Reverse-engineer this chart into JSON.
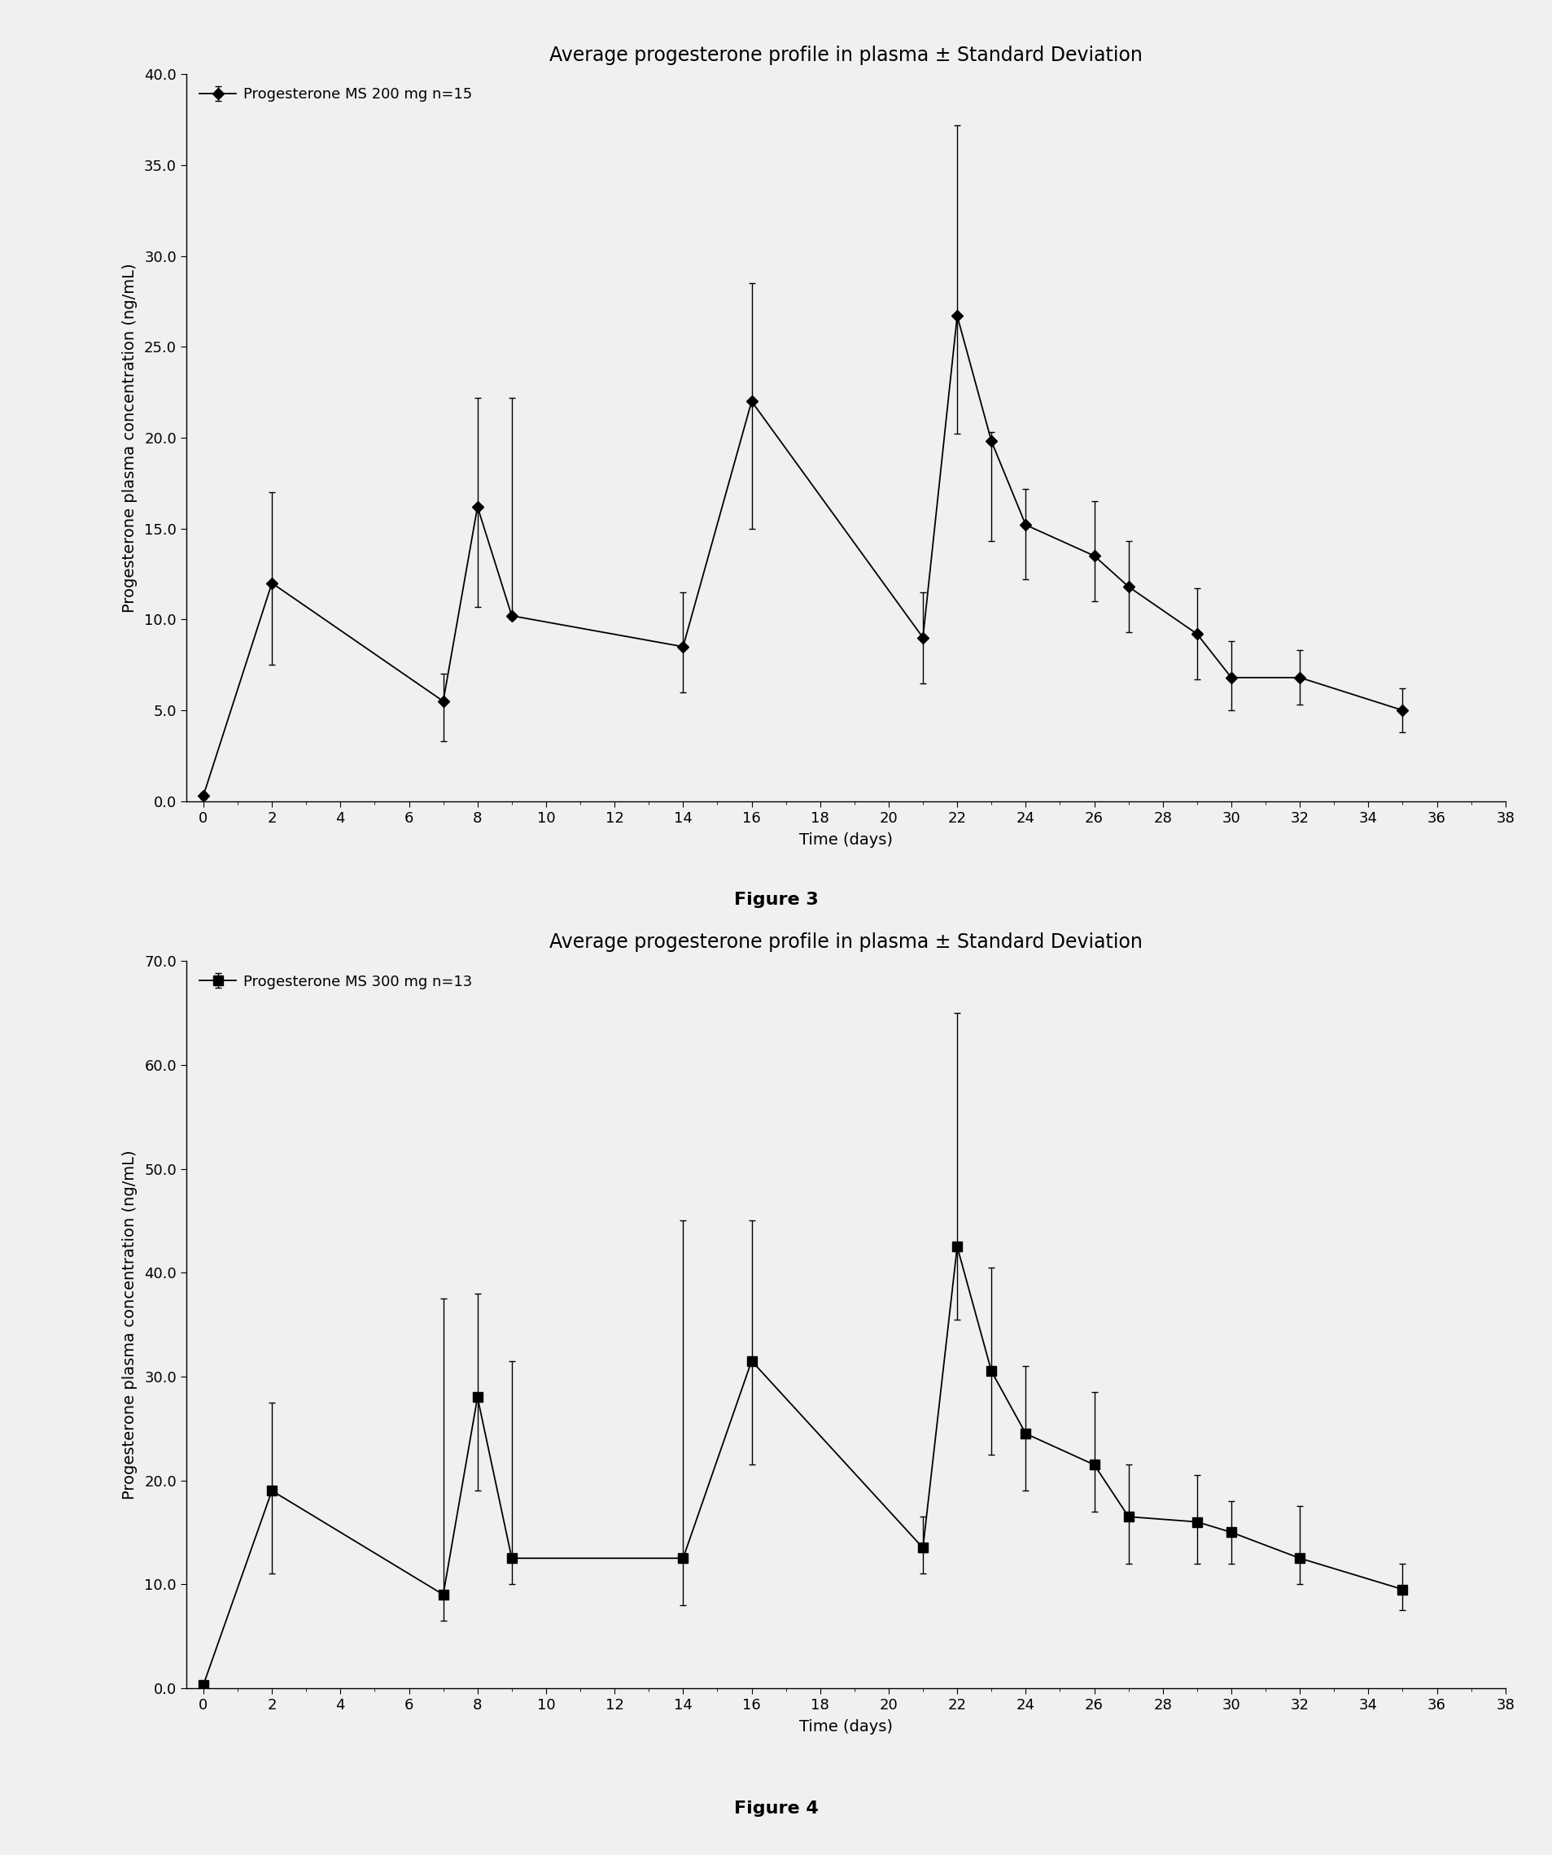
{
  "fig3": {
    "title": "Average progesterone profile in plasma ± Standard Deviation",
    "legend_label": "Progesterone MS 200 mg n=15",
    "xlabel": "Time (days)",
    "ylabel": "Progesterone plasma concentration (ng/mL)",
    "figure_label": "Figure 3",
    "ylim": [
      0.0,
      40.0
    ],
    "yticks": [
      0.0,
      5.0,
      10.0,
      15.0,
      20.0,
      25.0,
      30.0,
      35.0,
      40.0
    ],
    "xlim": [
      -0.5,
      38
    ],
    "xticks": [
      0,
      2,
      4,
      6,
      8,
      10,
      12,
      14,
      16,
      18,
      20,
      22,
      24,
      26,
      28,
      30,
      32,
      34,
      36,
      38
    ],
    "x": [
      0,
      2,
      7,
      8,
      9,
      14,
      16,
      21,
      22,
      23,
      24,
      26,
      27,
      29,
      30,
      32,
      35
    ],
    "y": [
      0.3,
      12.0,
      5.5,
      16.2,
      10.2,
      8.5,
      22.0,
      9.0,
      26.7,
      19.8,
      15.2,
      13.5,
      11.8,
      9.2,
      6.8,
      6.8,
      5.0
    ],
    "yerr_low": [
      0.2,
      4.5,
      2.2,
      5.5,
      0.2,
      2.5,
      7.0,
      2.5,
      6.5,
      5.5,
      3.0,
      2.5,
      2.5,
      2.5,
      1.8,
      1.5,
      1.2
    ],
    "yerr_high": [
      0.2,
      5.0,
      1.5,
      6.0,
      12.0,
      3.0,
      6.5,
      2.5,
      10.5,
      0.5,
      2.0,
      3.0,
      2.5,
      2.5,
      2.0,
      1.5,
      1.2
    ],
    "marker": "D",
    "marker_size": 7
  },
  "fig4": {
    "title": "Average progesterone profile in plasma ± Standard Deviation",
    "legend_label": "Progesterone MS 300 mg n=13",
    "xlabel": "Time (days)",
    "ylabel": "Progesterone plasma concentration (ng/mL)",
    "figure_label": "Figure 4",
    "ylim": [
      0.0,
      70.0
    ],
    "yticks": [
      0.0,
      10.0,
      20.0,
      30.0,
      40.0,
      50.0,
      60.0,
      70.0
    ],
    "xlim": [
      -0.5,
      38
    ],
    "xticks": [
      0,
      2,
      4,
      6,
      8,
      10,
      12,
      14,
      16,
      18,
      20,
      22,
      24,
      26,
      28,
      30,
      32,
      34,
      36,
      38
    ],
    "x": [
      0,
      2,
      7,
      8,
      9,
      14,
      16,
      21,
      22,
      23,
      24,
      26,
      27,
      29,
      30,
      32,
      35
    ],
    "y": [
      0.3,
      19.0,
      9.0,
      28.0,
      12.5,
      12.5,
      31.5,
      13.5,
      42.5,
      30.5,
      24.5,
      21.5,
      16.5,
      16.0,
      15.0,
      12.5,
      9.5
    ],
    "yerr_low": [
      0.2,
      8.0,
      2.5,
      9.0,
      2.5,
      4.5,
      10.0,
      2.5,
      7.0,
      8.0,
      5.5,
      4.5,
      4.5,
      4.0,
      3.0,
      2.5,
      2.0
    ],
    "yerr_high": [
      0.2,
      8.5,
      28.5,
      10.0,
      19.0,
      32.5,
      13.5,
      3.0,
      22.5,
      10.0,
      6.5,
      7.0,
      5.0,
      4.5,
      3.0,
      5.0,
      2.5
    ],
    "marker": "s",
    "marker_size": 8
  },
  "bg_color": "#f0f0f0",
  "line_color": "#000000",
  "title_fontsize": 17,
  "label_fontsize": 14,
  "tick_fontsize": 13,
  "legend_fontsize": 13,
  "figure_label_fontsize": 16
}
